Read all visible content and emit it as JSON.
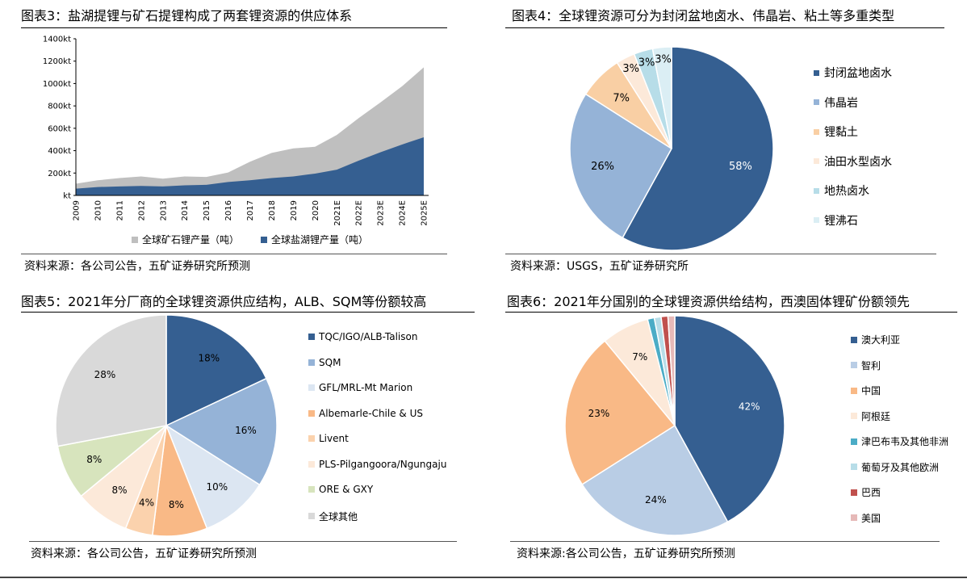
{
  "charts": [
    {
      "title": "图表3：盐湖提锂与矿石提锂构成了两套锂资源的供应体系",
      "source": "资料来源：各公司公告，五矿证券研究所预测",
      "legend": [
        {
          "label": "全球矿石锂产量（吨）",
          "color": "#bfbfbf"
        },
        {
          "label": "全球盐湖锂产量（吨）",
          "color": "#355f91"
        }
      ]
    },
    {
      "title": "图表4：全球锂资源可分为封闭盆地卤水、伟晶岩、粘土等多重类型",
      "source": "资料来源：USGS，五矿证券研究所",
      "legend": [
        {
          "label": "封闭盆地卤水",
          "color": "#355f91"
        },
        {
          "label": "伟晶岩",
          "color": "#95b3d7"
        },
        {
          "label": "锂黏土",
          "color": "#f9cfa4"
        },
        {
          "label": "油田水型卤水",
          "color": "#fce9d9"
        },
        {
          "label": "地热卤水",
          "color": "#b7dde8"
        },
        {
          "label": "锂沸石",
          "color": "#dbeef4"
        }
      ]
    },
    {
      "title": "图表5：2021年分厂商的全球锂资源供应结构，ALB、SQM等份额较高",
      "source": "资料来源：各公司公告，五矿证券研究所预测",
      "legend": [
        {
          "label": "TQC/IGO/ALB-Talison",
          "color": "#355f91"
        },
        {
          "label": "SQM",
          "color": "#95b3d7"
        },
        {
          "label": "GFL/MRL-Mt Marion",
          "color": "#dce6f2"
        },
        {
          "label": "Albemarle-Chile & US",
          "color": "#f9b986"
        },
        {
          "label": "Livent",
          "color": "#fbd2ad"
        },
        {
          "label": "PLS-Pilgangoora/Ngungaju",
          "color": "#fce9d9"
        },
        {
          "label": "ORE & GXY",
          "color": "#d7e4bd"
        },
        {
          "label": "全球其他",
          "color": "#d9d9d9"
        }
      ]
    },
    {
      "title": "图表6：2021年分国别的全球锂资源供给结构，西澳固体锂矿份额领先",
      "source": "资料来源:各公司公告，五矿证券研究所预测",
      "legend": [
        {
          "label": "澳大利亚",
          "color": "#355f91"
        },
        {
          "label": "智利",
          "color": "#b9cde5"
        },
        {
          "label": "中国",
          "color": "#f9b986"
        },
        {
          "label": "阿根廷",
          "color": "#fce9d9"
        },
        {
          "label": "津巴布韦及其他非洲",
          "color": "#4bacc6"
        },
        {
          "label": "葡萄牙及其他欧洲",
          "color": "#b7dde8"
        },
        {
          "label": "巴西",
          "color": "#c0504d"
        },
        {
          "label": "美国",
          "color": "#e6b9b8"
        }
      ]
    }
  ],
  "chart_data": [
    {
      "type": "area",
      "stacked": true,
      "categories": [
        "2009",
        "2010",
        "2011",
        "2012",
        "2013",
        "2014",
        "2015",
        "2016",
        "2017",
        "2018",
        "2019",
        "2020",
        "2021E",
        "2022E",
        "2023E",
        "2024E",
        "2025E"
      ],
      "series": [
        {
          "name": "全球盐湖锂产量（吨）",
          "color": "#355f91",
          "values": [
            60,
            75,
            80,
            85,
            80,
            90,
            95,
            120,
            135,
            155,
            170,
            195,
            230,
            310,
            385,
            455,
            520
          ]
        },
        {
          "name": "全球矿石锂产量（吨）",
          "color": "#bfbfbf",
          "values": [
            45,
            60,
            75,
            85,
            70,
            80,
            70,
            85,
            165,
            225,
            250,
            240,
            310,
            380,
            445,
            520,
            625
          ]
        }
      ],
      "yticks": [
        "kt",
        "200kt",
        "400kt",
        "600kt",
        "800kt",
        "1000kt",
        "1200kt",
        "1400kt"
      ],
      "ylim": [
        0,
        1400
      ]
    },
    {
      "type": "pie",
      "labels": [
        "封闭盆地卤水",
        "伟晶岩",
        "锂黏土",
        "油田水型卤水",
        "地热卤水",
        "锂沸石"
      ],
      "values": [
        58,
        26,
        7,
        3,
        3,
        3
      ],
      "data_labels": [
        "58%",
        "26%",
        "7%",
        "3%",
        "3%",
        "3%"
      ],
      "colors": [
        "#355f91",
        "#95b3d7",
        "#f9cfa4",
        "#fce9d9",
        "#b7dde8",
        "#dbeef4"
      ]
    },
    {
      "type": "pie",
      "labels": [
        "TQC/IGO/ALB-Talison",
        "SQM",
        "GFL/MRL-Mt Marion",
        "Albemarle-Chile & US",
        "Livent",
        "PLS-Pilgangoora/Ngungaju",
        "ORE & GXY",
        "全球其他"
      ],
      "values": [
        18,
        16,
        10,
        8,
        4,
        8,
        8,
        28
      ],
      "data_labels": [
        "18%",
        "16%",
        "10%",
        "8%",
        "4%",
        "8%",
        "8%",
        "28%"
      ],
      "colors": [
        "#355f91",
        "#95b3d7",
        "#dce6f2",
        "#f9b986",
        "#fbd2ad",
        "#fce9d9",
        "#d7e4bd",
        "#d9d9d9"
      ]
    },
    {
      "type": "pie",
      "labels": [
        "澳大利亚",
        "智利",
        "中国",
        "阿根廷",
        "津巴布韦及其他非洲",
        "葡萄牙及其他欧洲",
        "巴西",
        "美国"
      ],
      "values": [
        42,
        24,
        23,
        7,
        1,
        1,
        1,
        1
      ],
      "data_labels": [
        "42%",
        "24%",
        "23%",
        "7%",
        "",
        "",
        "",
        ""
      ],
      "colors": [
        "#355f91",
        "#b9cde5",
        "#f9b986",
        "#fce9d9",
        "#4bacc6",
        "#b7dde8",
        "#c0504d",
        "#e6b9b8"
      ]
    }
  ]
}
